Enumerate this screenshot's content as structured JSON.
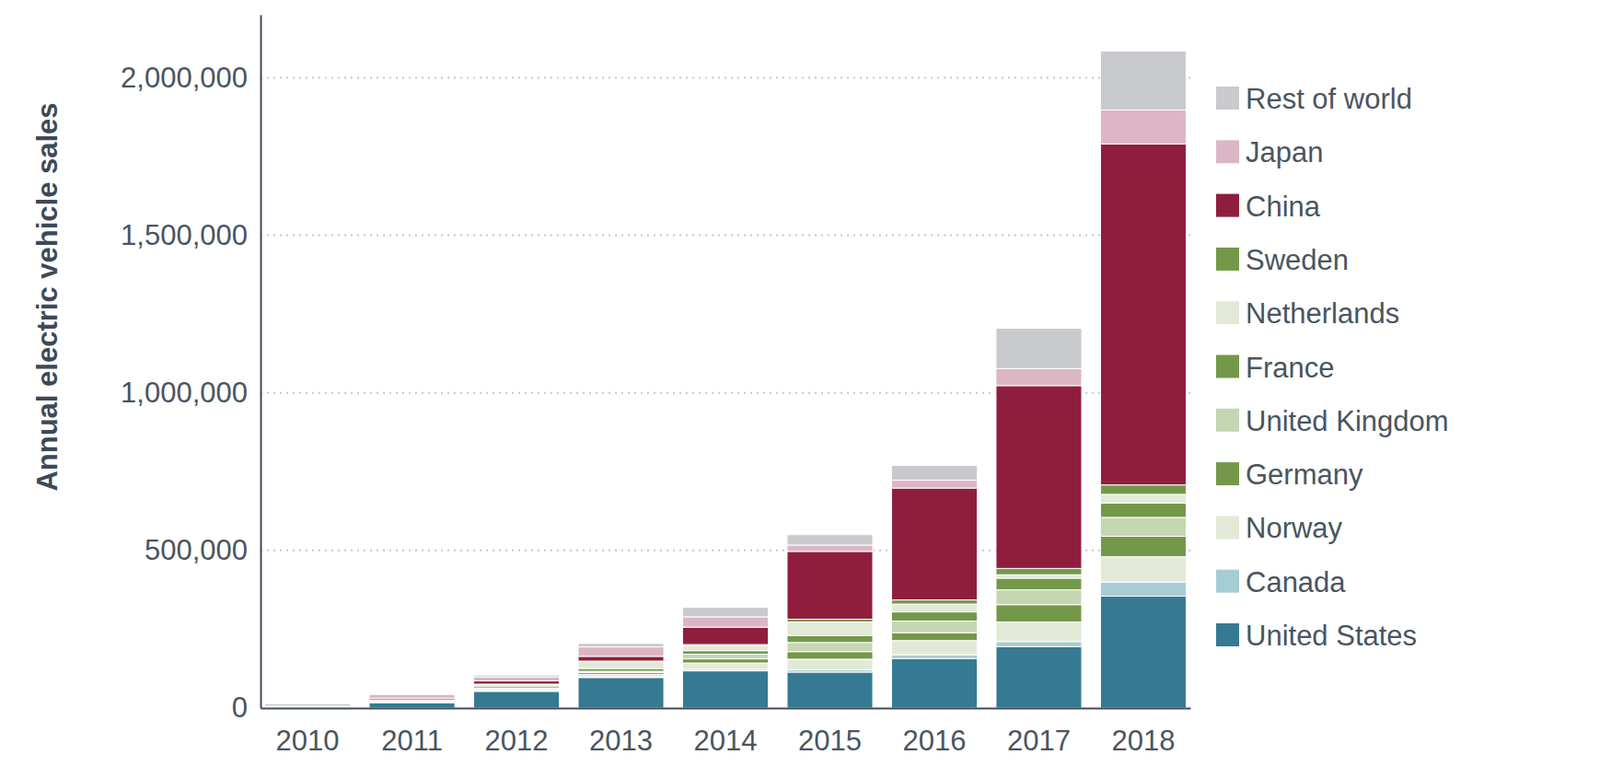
{
  "chart_data": {
    "type": "bar",
    "stacked": true,
    "grid": true,
    "legend": "right",
    "y_label": "Annual electric vehicle sales",
    "categories": [
      "2010",
      "2011",
      "2012",
      "2013",
      "2014",
      "2015",
      "2016",
      "2017",
      "2018"
    ],
    "ylim": [
      0,
      2200000
    ],
    "yticks": [
      0,
      {
        "value": 500000,
        "label": "500,000"
      },
      {
        "value": 1000000,
        "label": "1,000,000"
      },
      {
        "value": 1500000,
        "label": "1,500,000"
      },
      {
        "value": 2000000,
        "label": "2,000,000"
      }
    ],
    "series": [
      {
        "name": "United States",
        "color": "#357a92",
        "values": [
          1000,
          17000,
          53000,
          97000,
          118000,
          114000,
          157000,
          195000,
          355000
        ]
      },
      {
        "name": "Canada",
        "color": "#a6ccd6",
        "values": [
          0,
          500,
          2000,
          2000,
          5000,
          7000,
          12000,
          16000,
          45000
        ]
      },
      {
        "name": "Norway",
        "color": "#e2ead7",
        "values": [
          500,
          2000,
          4000,
          8000,
          20000,
          34000,
          45000,
          62000,
          80000
        ]
      },
      {
        "name": "Germany",
        "color": "#74984a",
        "values": [
          500,
          2000,
          3000,
          6000,
          13000,
          24000,
          25000,
          55000,
          65000
        ]
      },
      {
        "name": "United Kingdom",
        "color": "#c5d6b2",
        "values": [
          200,
          1000,
          2000,
          3500,
          15000,
          29000,
          37000,
          47000,
          60000
        ]
      },
      {
        "name": "France",
        "color": "#74984a",
        "values": [
          200,
          2500,
          6000,
          9000,
          11000,
          22000,
          29000,
          37000,
          45000
        ]
      },
      {
        "name": "Netherlands",
        "color": "#e2ead7",
        "values": [
          100,
          1000,
          5000,
          22000,
          15000,
          43000,
          25000,
          11000,
          28000
        ]
      },
      {
        "name": "Sweden",
        "color": "#74984a",
        "values": [
          0,
          200,
          1000,
          1500,
          4500,
          9000,
          13000,
          20000,
          30000
        ]
      },
      {
        "name": "China",
        "color": "#8f1e3e",
        "values": [
          1000,
          5000,
          10000,
          15000,
          55000,
          215000,
          355000,
          580000,
          1082000
        ]
      },
      {
        "name": "Japan",
        "color": "#dcb6c5",
        "values": [
          2500,
          12000,
          13000,
          30000,
          33000,
          20000,
          25000,
          54000,
          108000
        ]
      },
      {
        "name": "Rest of world",
        "color": "#c8cacd",
        "values": [
          8000,
          2000,
          6000,
          11000,
          30000,
          33000,
          47000,
          128000,
          187000
        ]
      }
    ]
  }
}
